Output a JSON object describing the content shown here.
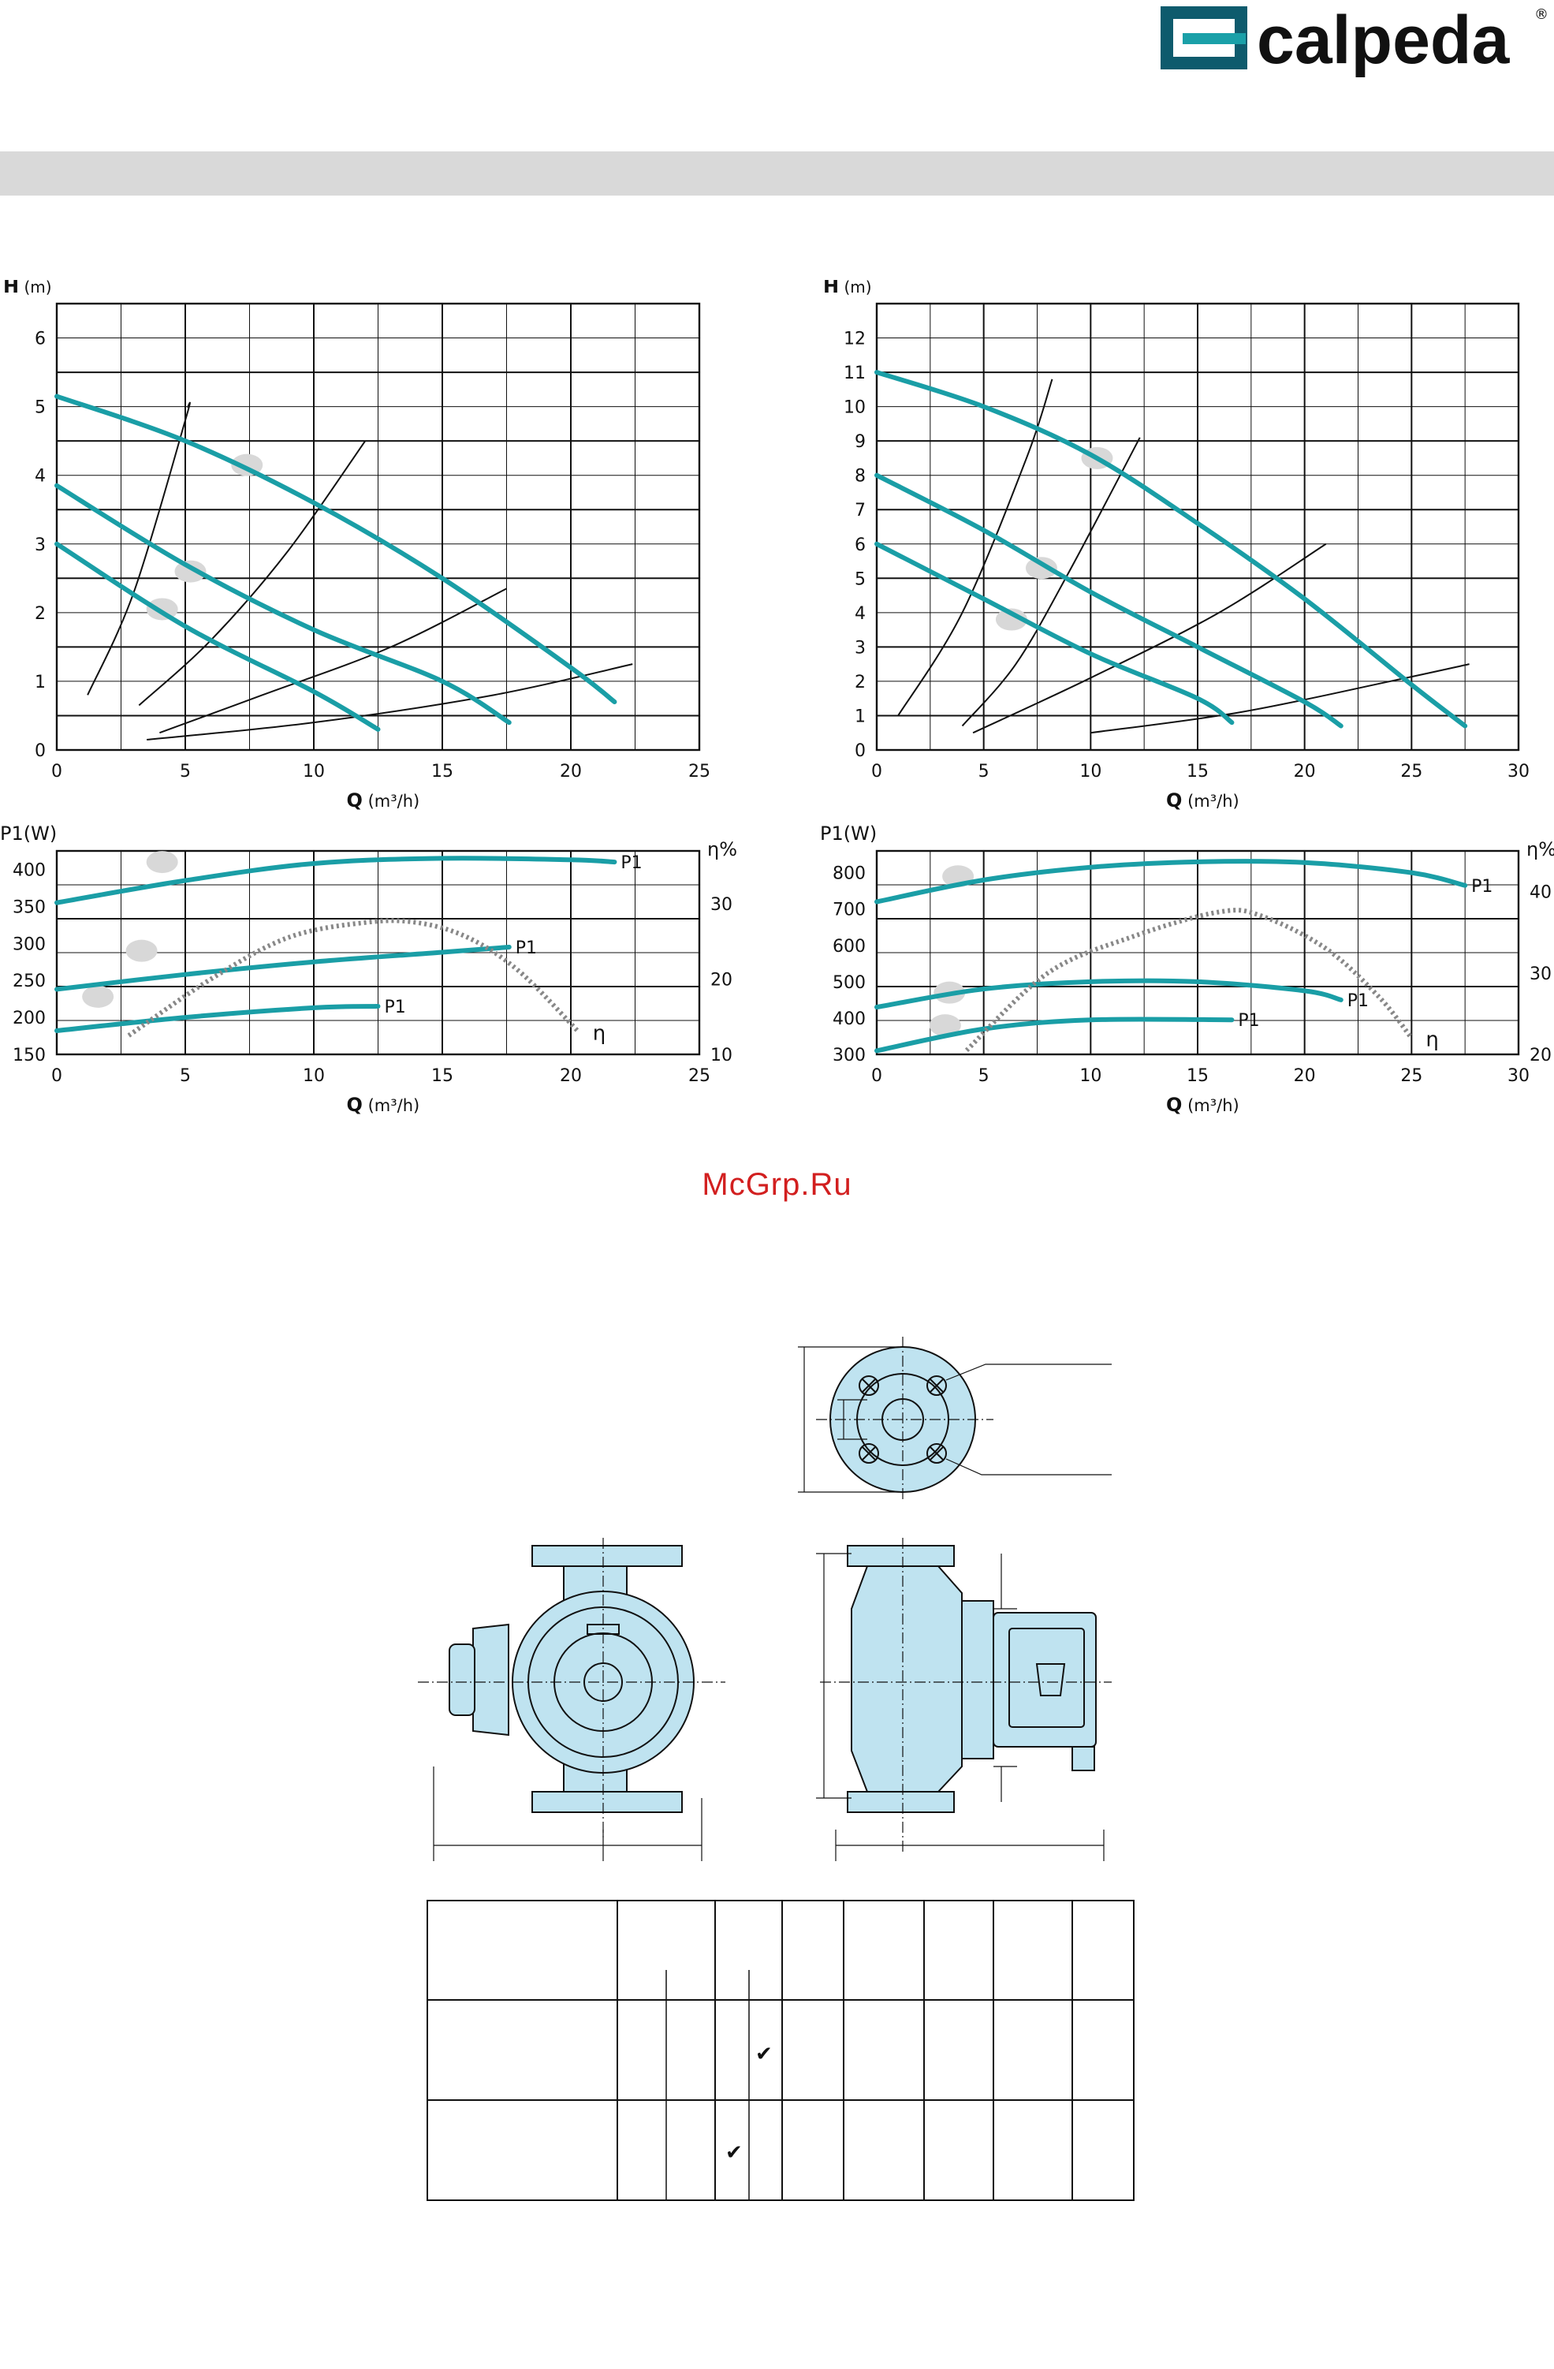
{
  "brand": {
    "name": "calpeda",
    "registered": "®",
    "color": "#0e5b6d",
    "accent": "#1aa0a8"
  },
  "watermark": "McGrp.Ru",
  "colors": {
    "curve": "#1a9ea6",
    "grid": "#111111",
    "line": "#111111",
    "efficiency": "#888888",
    "marker": "#d8d8d8",
    "pump_fill": "#bfe3f0"
  },
  "chart_data": [
    {
      "type": "line",
      "ylabel": "H",
      "yunit": "(m)",
      "xlabel": "Q",
      "xunit": "(m³/h)",
      "xlim": [
        0,
        25
      ],
      "ylim": [
        0,
        6.5
      ],
      "xticks": [
        0,
        5,
        10,
        15,
        20,
        25
      ],
      "yticks": [
        0,
        1,
        2,
        3,
        4,
        5,
        6
      ],
      "grid": true,
      "series": [
        {
          "x": [
            0,
            5,
            10,
            15,
            20,
            21.7
          ],
          "y": [
            5.15,
            4.5,
            3.6,
            2.5,
            1.2,
            0.7
          ]
        },
        {
          "x": [
            0,
            5,
            10,
            15,
            17.6
          ],
          "y": [
            3.85,
            2.7,
            1.75,
            1.0,
            0.4
          ]
        },
        {
          "x": [
            0,
            5,
            10,
            12.5
          ],
          "y": [
            3.0,
            1.8,
            0.85,
            0.3
          ]
        }
      ],
      "system_curves": [
        {
          "x": [
            1.2,
            3,
            5,
            5.1
          ],
          "y": [
            0.8,
            2.3,
            4.8,
            5.0
          ]
        },
        {
          "x": [
            3.2,
            6,
            9,
            12
          ],
          "y": [
            0.65,
            1.6,
            2.9,
            4.5
          ]
        },
        {
          "x": [
            4,
            8,
            13,
            17.5
          ],
          "y": [
            0.25,
            0.8,
            1.5,
            2.35
          ]
        },
        {
          "x": [
            3.5,
            10,
            17,
            22.4
          ],
          "y": [
            0.15,
            0.4,
            0.8,
            1.25
          ]
        }
      ],
      "markers": [
        {
          "x": 7.4,
          "y": 4.15
        },
        {
          "x": 5.2,
          "y": 2.6
        },
        {
          "x": 4.1,
          "y": 2.05
        }
      ]
    },
    {
      "type": "line",
      "ylabel": "H",
      "yunit": "(m)",
      "xlabel": "Q",
      "xunit": "(m³/h)",
      "xlim": [
        0,
        30
      ],
      "ylim": [
        0,
        13
      ],
      "xticks": [
        0,
        5,
        10,
        15,
        20,
        25,
        30
      ],
      "yticks": [
        0,
        1,
        2,
        3,
        4,
        5,
        6,
        7,
        8,
        9,
        10,
        11,
        12
      ],
      "grid": true,
      "series": [
        {
          "x": [
            0,
            5,
            10,
            15,
            20,
            25,
            27.5
          ],
          "y": [
            11.0,
            10.0,
            8.6,
            6.6,
            4.4,
            1.9,
            0.7
          ]
        },
        {
          "x": [
            0,
            5,
            10,
            15,
            20,
            21.7
          ],
          "y": [
            8.0,
            6.4,
            4.6,
            3.0,
            1.4,
            0.7
          ]
        },
        {
          "x": [
            0,
            5,
            10,
            15,
            16.6
          ],
          "y": [
            6.0,
            4.4,
            2.8,
            1.5,
            0.8
          ]
        }
      ],
      "system_curves": [
        {
          "x": [
            1,
            4,
            7,
            8.2
          ],
          "y": [
            1.0,
            4.0,
            8.5,
            10.8
          ]
        },
        {
          "x": [
            4,
            6.5,
            9,
            12.3
          ],
          "y": [
            0.7,
            2.5,
            5.2,
            9.1
          ]
        },
        {
          "x": [
            4.5,
            10,
            16,
            21
          ],
          "y": [
            0.5,
            2.1,
            4.0,
            6.0
          ]
        },
        {
          "x": [
            10,
            17,
            24,
            27.7
          ],
          "y": [
            0.5,
            1.1,
            2.0,
            2.5
          ]
        }
      ],
      "markers": [
        {
          "x": 10.3,
          "y": 8.5
        },
        {
          "x": 7.7,
          "y": 5.3
        },
        {
          "x": 6.3,
          "y": 3.8
        }
      ]
    },
    {
      "type": "line",
      "ylabel": "P1(W)",
      "y2label": "η%",
      "xlabel": "Q",
      "xunit": "(m³/h)",
      "xlim": [
        0,
        25
      ],
      "ylim": [
        150,
        425
      ],
      "y2lim": [
        10,
        37
      ],
      "xticks": [
        0,
        5,
        10,
        15,
        20,
        25
      ],
      "yticks": [
        150,
        200,
        250,
        300,
        350,
        400
      ],
      "y2ticks": [
        10,
        20,
        30
      ],
      "grid": true,
      "series": [
        {
          "name": "P1",
          "x": [
            0,
            5,
            10,
            15,
            20,
            21.7
          ],
          "y": [
            355,
            385,
            408,
            415,
            413,
            410
          ]
        },
        {
          "name": "P1",
          "x": [
            0,
            5,
            10,
            15,
            17.6
          ],
          "y": [
            238,
            258,
            275,
            288,
            295
          ]
        },
        {
          "name": "P1",
          "x": [
            0,
            5,
            10,
            12.5
          ],
          "y": [
            182,
            200,
            213,
            215
          ]
        }
      ],
      "efficiency": {
        "name": "η",
        "x": [
          2.8,
          6,
          9,
          12,
          14,
          16,
          18,
          20.3
        ],
        "y": [
          12.5,
          20,
          25.5,
          27.5,
          27.5,
          25.5,
          21,
          13
        ]
      },
      "markers": [
        {
          "x": 4.1,
          "y": 410
        },
        {
          "x": 3.3,
          "y": 290
        },
        {
          "x": 1.6,
          "y": 228
        }
      ]
    },
    {
      "type": "line",
      "ylabel": "P1(W)",
      "y2label": "η%",
      "xlabel": "Q",
      "xunit": "(m³/h)",
      "xlim": [
        0,
        30
      ],
      "ylim": [
        300,
        860
      ],
      "y2lim": [
        20,
        45
      ],
      "xticks": [
        0,
        5,
        10,
        15,
        20,
        25,
        30
      ],
      "yticks": [
        300,
        400,
        500,
        600,
        700,
        800
      ],
      "y2ticks": [
        20,
        30,
        40
      ],
      "grid": true,
      "series": [
        {
          "name": "P1",
          "x": [
            0,
            5,
            10,
            15,
            20,
            25,
            27.5
          ],
          "y": [
            720,
            780,
            815,
            830,
            828,
            800,
            765
          ]
        },
        {
          "name": "P1",
          "x": [
            0,
            5,
            10,
            15,
            20,
            21.7
          ],
          "y": [
            430,
            480,
            500,
            500,
            475,
            450
          ]
        },
        {
          "name": "P1",
          "x": [
            0,
            5,
            10,
            16.6
          ],
          "y": [
            310,
            370,
            395,
            395
          ]
        }
      ],
      "efficiency": {
        "name": "η",
        "x": [
          4.2,
          8,
          12,
          16,
          18,
          21,
          23.5,
          25
        ],
        "y": [
          20.5,
          30,
          34.5,
          37.5,
          37,
          33,
          27,
          22
        ]
      },
      "markers": [
        {
          "x": 3.8,
          "y": 790
        },
        {
          "x": 3.4,
          "y": 470
        },
        {
          "x": 3.2,
          "y": 380
        }
      ]
    }
  ],
  "table": {
    "check_mark": "✔"
  }
}
